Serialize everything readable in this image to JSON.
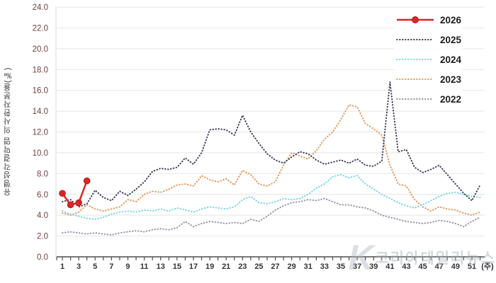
{
  "y_axis": {
    "label": "유행성각결막염 의사환자분율(‰)",
    "tick_labels": [
      "0.0",
      "2.0",
      "4.0",
      "6.0",
      "8.0",
      "10.0",
      "12.0",
      "14.0",
      "16.0",
      "18.0",
      "20.0",
      "22.0",
      "24.0"
    ],
    "tick_color": "#713f3f"
  },
  "x_axis": {
    "tick_labels": [
      "1",
      "3",
      "5",
      "7",
      "9",
      "11",
      "13",
      "15",
      "17",
      "19",
      "21",
      "23",
      "25",
      "27",
      "29",
      "31",
      "33",
      "35",
      "37",
      "39",
      "41",
      "43",
      "45",
      "47",
      "49",
      "51"
    ],
    "unit_label": "(주)",
    "weeks_total": 52
  },
  "legend": {
    "position": "top-right",
    "entries": [
      "2026",
      "2025",
      "2024",
      "2023",
      "2022"
    ]
  },
  "watermark": {
    "logo_letter": "K",
    "text": "코리아데일리뉴스"
  },
  "chart_data": {
    "type": "line",
    "x_range": [
      1,
      52
    ],
    "x_unit": "주",
    "ylim": [
      0,
      24
    ],
    "ytick_step": 2,
    "grid": "horizontal",
    "legend_position": "top-right",
    "series": [
      {
        "name": "2026",
        "color": "#d92626",
        "style": "solid-marker",
        "values": [
          6.1,
          5.0,
          5.2,
          7.3
        ]
      },
      {
        "name": "2025",
        "color": "#41415f",
        "style": "dotted",
        "values": [
          5.3,
          5.5,
          4.8,
          5.1,
          6.4,
          5.7,
          5.4,
          6.3,
          5.9,
          6.5,
          7.2,
          8.2,
          8.5,
          8.4,
          8.6,
          9.5,
          8.9,
          10.0,
          12.2,
          12.3,
          12.2,
          11.7,
          13.6,
          12.0,
          10.9,
          9.9,
          9.3,
          9.0,
          9.6,
          10.1,
          9.9,
          9.3,
          8.9,
          9.1,
          9.3,
          9.0,
          9.4,
          8.8,
          8.7,
          9.2,
          16.8,
          10.1,
          10.3,
          8.6,
          8.1,
          8.4,
          8.8,
          7.9,
          7.0,
          6.1,
          5.4,
          6.9
        ]
      },
      {
        "name": "2024",
        "color": "#7cd5e6",
        "style": "dotted",
        "values": [
          4.4,
          4.1,
          3.9,
          3.7,
          3.6,
          3.8,
          4.1,
          4.3,
          4.4,
          4.3,
          4.5,
          4.4,
          4.6,
          4.4,
          4.7,
          4.5,
          4.3,
          4.6,
          4.8,
          4.7,
          4.6,
          4.8,
          5.5,
          5.8,
          5.2,
          5.1,
          5.3,
          5.6,
          5.5,
          5.6,
          6.0,
          6.6,
          7.0,
          7.7,
          7.9,
          7.6,
          7.8,
          7.0,
          6.5,
          6.0,
          5.6,
          5.2,
          4.9,
          4.7,
          5.0,
          5.4,
          5.8,
          6.1,
          6.2,
          6.0,
          5.8,
          5.7
        ]
      },
      {
        "name": "2023",
        "color": "#e69a5f",
        "style": "dotted",
        "values": [
          4.2,
          4.0,
          4.3,
          5.0,
          4.6,
          4.4,
          4.6,
          4.8,
          5.5,
          5.3,
          6.0,
          6.3,
          6.2,
          6.5,
          6.9,
          7.0,
          6.8,
          7.8,
          7.4,
          7.2,
          7.5,
          6.9,
          8.3,
          7.9,
          7.0,
          6.8,
          7.2,
          8.8,
          10.0,
          9.7,
          9.4,
          10.2,
          11.3,
          12.0,
          13.2,
          14.6,
          14.4,
          12.8,
          12.3,
          11.7,
          8.8,
          7.0,
          6.8,
          5.5,
          4.8,
          4.4,
          4.8,
          4.6,
          4.5,
          4.2,
          4.0,
          4.3
        ]
      },
      {
        "name": "2022",
        "color": "#9c95ab",
        "style": "dotted",
        "values": [
          2.3,
          2.4,
          2.3,
          2.2,
          2.3,
          2.2,
          2.1,
          2.3,
          2.4,
          2.5,
          2.4,
          2.6,
          2.7,
          2.6,
          2.8,
          3.4,
          2.9,
          3.2,
          3.4,
          3.3,
          3.2,
          3.3,
          3.2,
          3.6,
          3.4,
          3.9,
          4.5,
          4.9,
          5.2,
          5.3,
          5.5,
          5.4,
          5.6,
          5.3,
          5.0,
          5.0,
          4.8,
          4.7,
          4.4,
          4.0,
          3.8,
          3.6,
          3.4,
          3.3,
          3.2,
          3.3,
          3.5,
          3.4,
          3.2,
          2.9,
          3.4,
          3.8
        ]
      }
    ]
  }
}
